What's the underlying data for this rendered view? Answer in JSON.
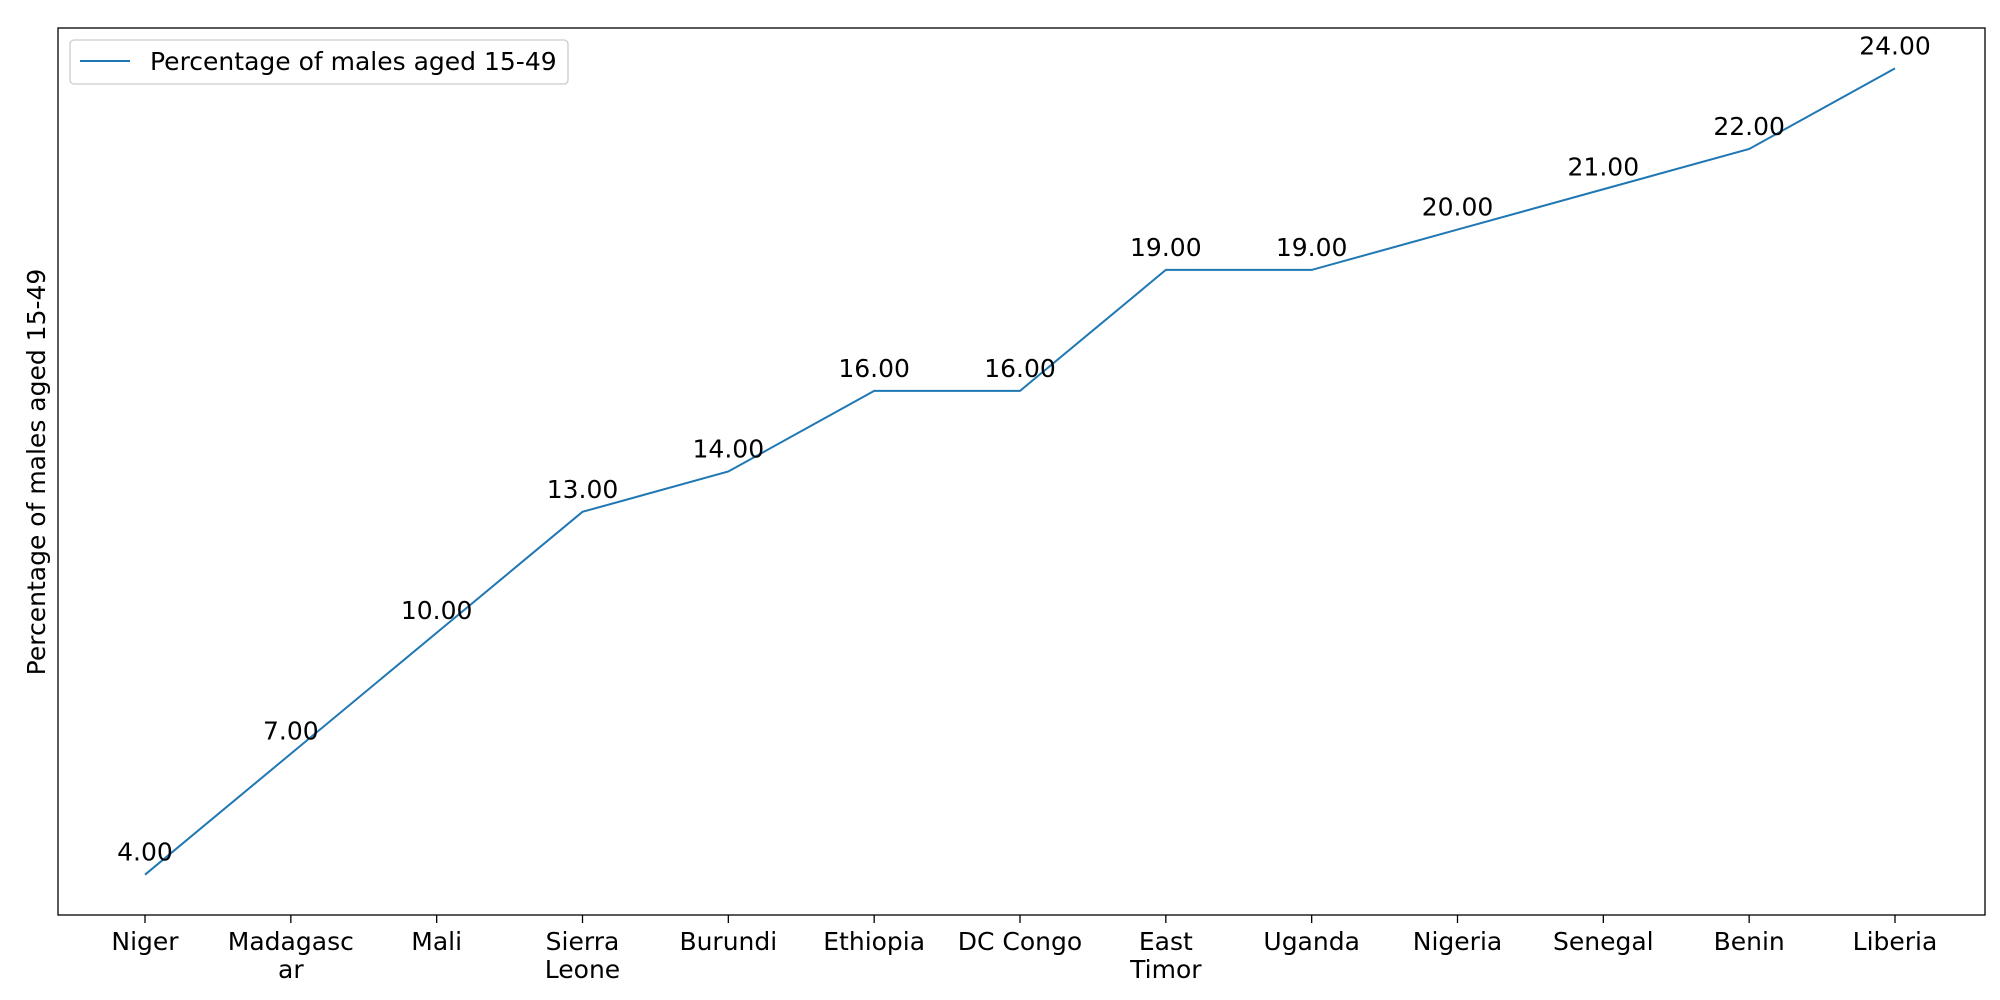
{
  "chart_data": {
    "type": "line",
    "categories": [
      [
        "Niger"
      ],
      [
        "Madagasc",
        "ar"
      ],
      [
        "Mali"
      ],
      [
        "Sierra",
        "Leone"
      ],
      [
        "Burundi"
      ],
      [
        "Ethiopia"
      ],
      [
        "DC Congo"
      ],
      [
        "East",
        "Timor"
      ],
      [
        "Uganda"
      ],
      [
        "Nigeria"
      ],
      [
        "Senegal"
      ],
      [
        "Benin"
      ],
      [
        "Liberia"
      ]
    ],
    "series": [
      {
        "name": "Percentage of males aged 15-49",
        "values": [
          4,
          7,
          10,
          13,
          14,
          16,
          16,
          19,
          19,
          20,
          21,
          22,
          24
        ],
        "data_labels": [
          "4.00",
          "7.00",
          "10.00",
          "13.00",
          "14.00",
          "16.00",
          "16.00",
          "19.00",
          "19.00",
          "20.00",
          "21.00",
          "22.00",
          "24.00"
        ],
        "color": "#1f77b4"
      }
    ],
    "xlabel": "",
    "ylabel": "Percentage of males aged 15-49",
    "ylim": [
      3,
      25
    ],
    "grid": false,
    "legend_position": "top-left",
    "y_ticks_visible": false
  }
}
